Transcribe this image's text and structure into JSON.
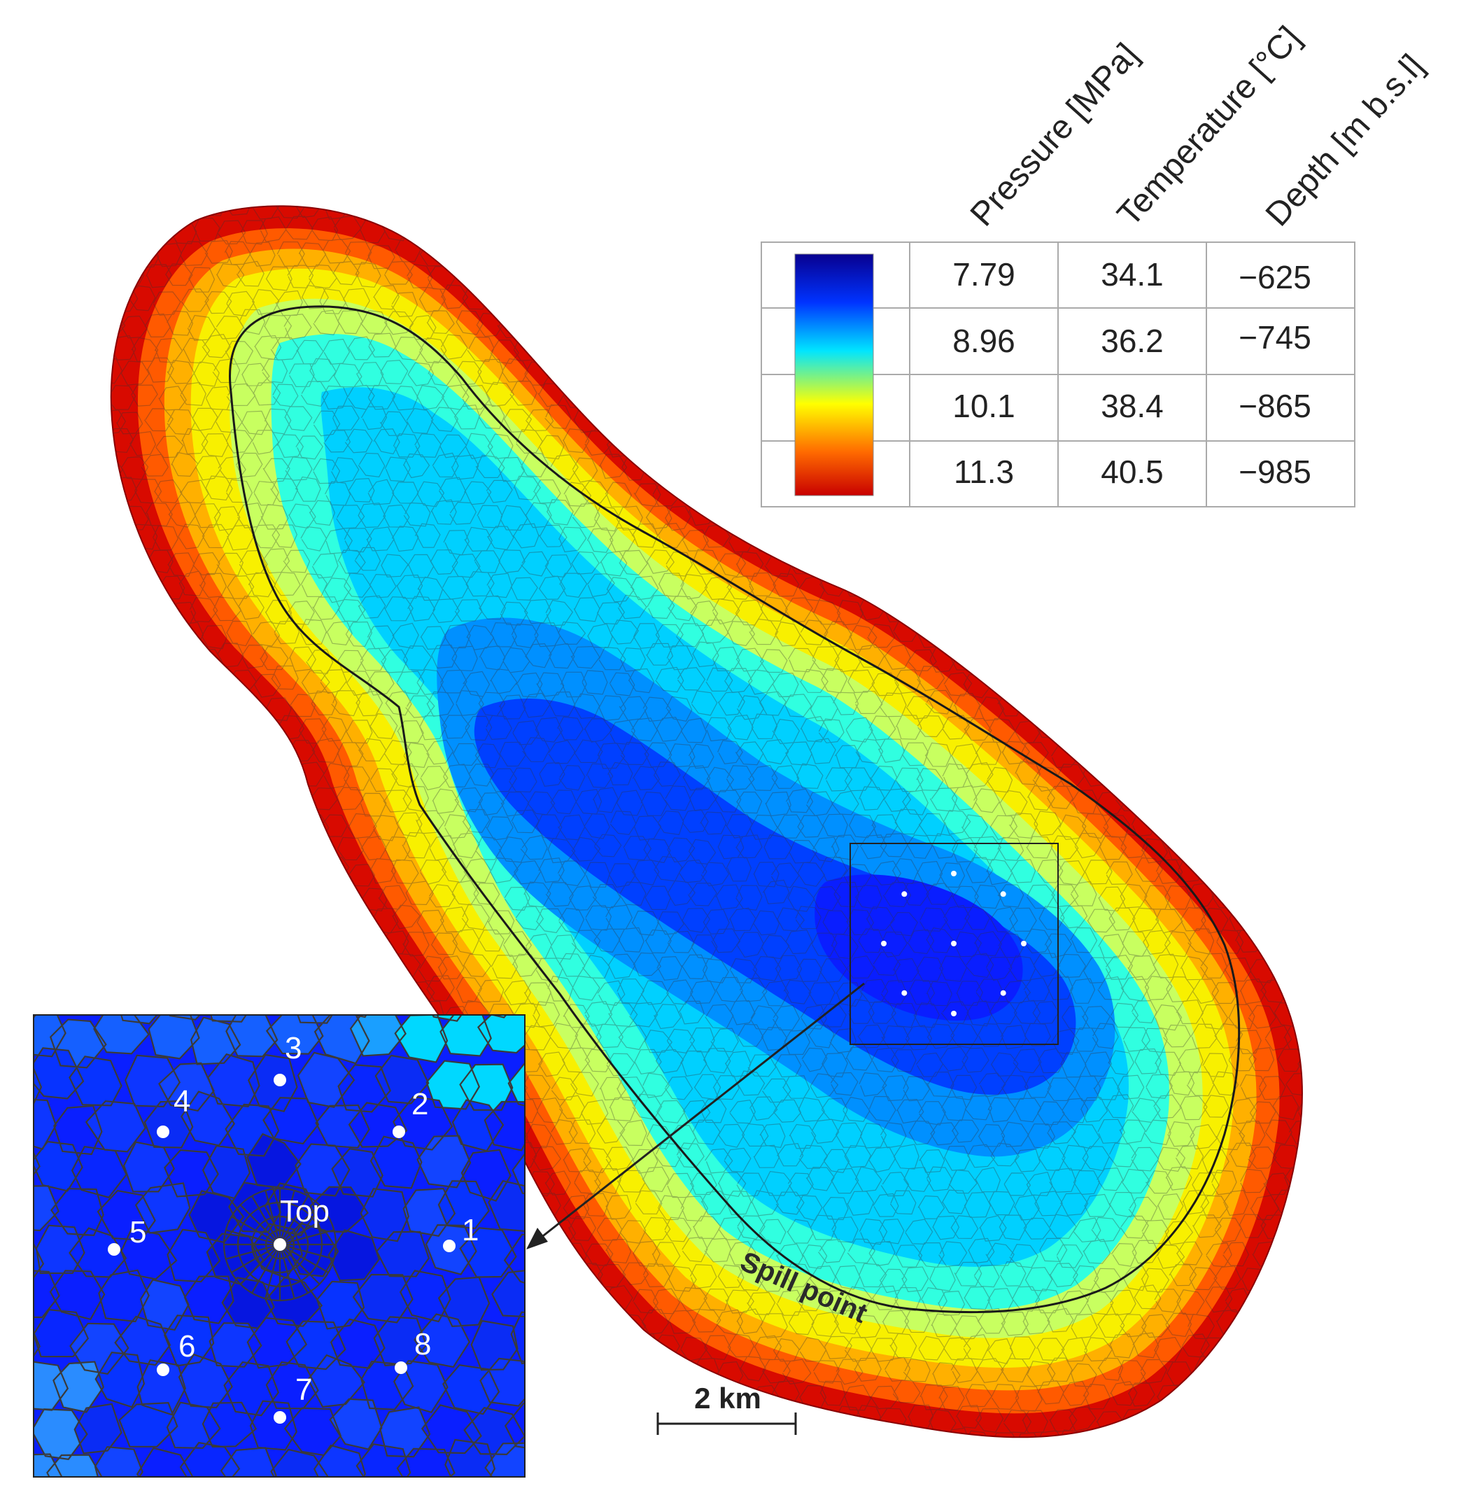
{
  "legend": {
    "headers": [
      "Pressure [MPa]",
      "Temperature [°C]",
      "Depth [m b.s.l]"
    ],
    "rows": [
      {
        "pressure": "7.79",
        "temperature": "34.1",
        "depth": "−625"
      },
      {
        "pressure": "8.96",
        "temperature": "36.2",
        "depth": "−745"
      },
      {
        "pressure": "10.1",
        "temperature": "38.4",
        "depth": "−865"
      },
      {
        "pressure": "11.3",
        "temperature": "40.5",
        "depth": "−985"
      }
    ],
    "colormap": [
      "#08008f",
      "#0033ff",
      "#00e5ff",
      "#ffff00",
      "#ff6a00",
      "#c80000"
    ]
  },
  "map": {
    "spill_label": "Spill point",
    "scale_label": "2 km",
    "edge_color": "#ff1a00",
    "core_color": "#0a28ff"
  },
  "inset": {
    "top_label": "Top",
    "well_labels": [
      "1",
      "2",
      "3",
      "4",
      "5",
      "6",
      "7",
      "8"
    ],
    "base_color": "#0a1fff"
  }
}
